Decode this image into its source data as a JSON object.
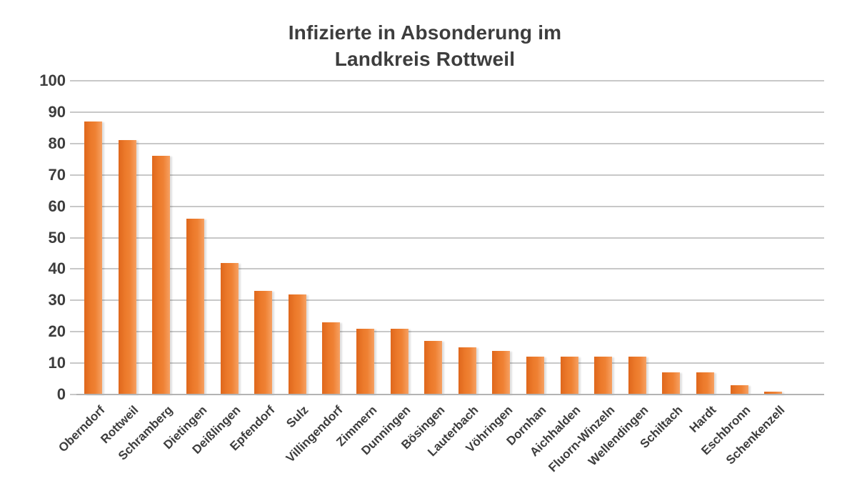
{
  "chart_data": {
    "type": "bar",
    "title": "Infizierte in Absonderung im Landkreis Rottweil",
    "categories": [
      "Oberndorf",
      "Rottweil",
      "Schramberg",
      "Dietingen",
      "Deißlingen",
      "Epfendorf",
      "Sulz",
      "Villingendorf",
      "Zimmern",
      "Dunningen",
      "Bösingen",
      "Lauterbach",
      "Vöhringen",
      "Dornhan",
      "Aichhalden",
      "Fluorn-Winzeln",
      "Wellendingen",
      "Schiltach",
      "Hardt",
      "Eschbronn",
      "Schenkenzell"
    ],
    "values": [
      87,
      81,
      76,
      56,
      42,
      33,
      32,
      23,
      21,
      21,
      17,
      15,
      14,
      12,
      12,
      12,
      12,
      7,
      7,
      3,
      1
    ],
    "xlabel": "",
    "ylabel": "",
    "ylim": [
      0,
      100
    ],
    "yticks": [
      0,
      10,
      20,
      30,
      40,
      50,
      60,
      70,
      80,
      90,
      100
    ],
    "grid": true,
    "legend": "none",
    "colors": {
      "bar": "#ED7B2F",
      "bar_gradient_left": "#DF671C",
      "bar_gradient_right": "#F6A163",
      "gridline": "#C8C8C8",
      "axis_line": "#B3B3B3",
      "text": "#3D3D3D",
      "background": "#FFFFFF"
    }
  }
}
